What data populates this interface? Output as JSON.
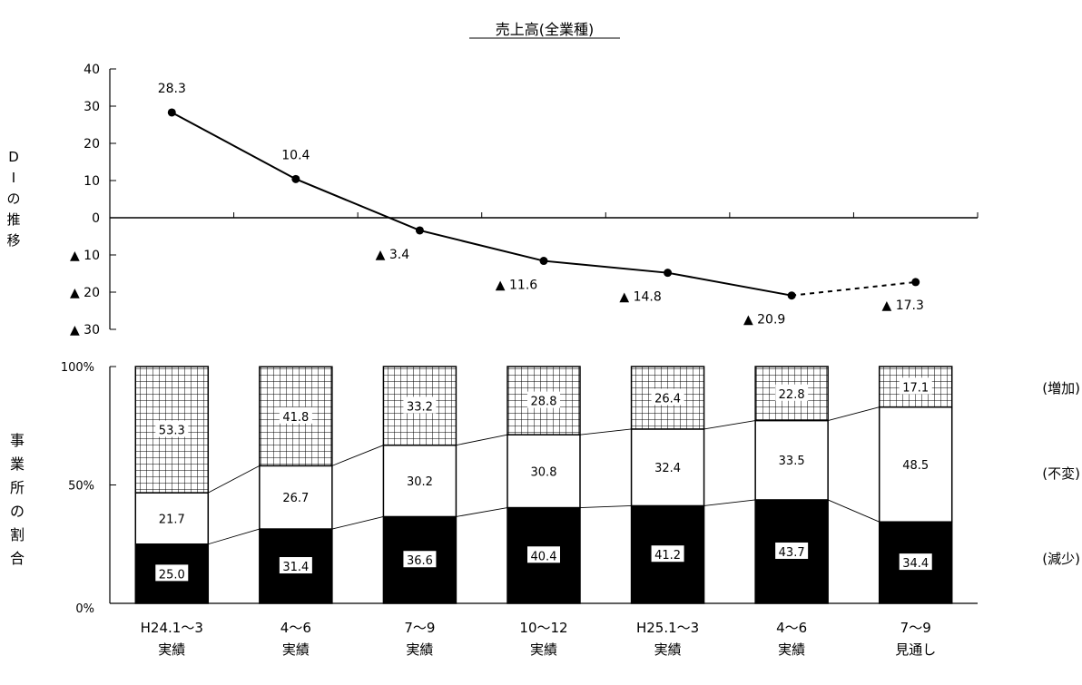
{
  "chart_data": [
    {
      "type": "line",
      "title": "売上高(全業種)",
      "ylabel_chars": [
        "D",
        "I",
        "の",
        "推",
        "移"
      ],
      "ylim": [
        -30,
        40
      ],
      "yticks": [
        {
          "value": 40,
          "label": "40"
        },
        {
          "value": 30,
          "label": "30"
        },
        {
          "value": 20,
          "label": "20"
        },
        {
          "value": 10,
          "label": "10"
        },
        {
          "value": 0,
          "label": "0"
        },
        {
          "value": -10,
          "label": "▲ 10"
        },
        {
          "value": -20,
          "label": "▲ 20"
        },
        {
          "value": -30,
          "label": "▲ 30"
        }
      ],
      "x": [
        "H24.1～3 実績",
        "4～6 実績",
        "7～9 実績",
        "10～12 実績",
        "H25.1～3 実績",
        "4～6 実績",
        "7～9 見通し"
      ],
      "values": [
        28.3,
        10.4,
        -3.4,
        -11.6,
        -14.8,
        -20.9,
        -17.3
      ],
      "value_labels": [
        "28.3",
        "10.4",
        "▲ 3.4",
        "▲ 11.6",
        "▲ 14.8",
        "▲ 20.9",
        "▲ 17.3"
      ],
      "forecast_last_segment_dashed": true
    },
    {
      "type": "bar",
      "stacked": true,
      "ylabel_chars": [
        "事",
        "業",
        "所",
        "の",
        "割",
        "合"
      ],
      "ylim": [
        0,
        100
      ],
      "yticks": [
        "0%",
        "50%",
        "100%"
      ],
      "categories": [
        {
          "line1": "H24.1～3",
          "line2": "実績"
        },
        {
          "line1": "4～6",
          "line2": "実績"
        },
        {
          "line1": "7～9",
          "line2": "実績"
        },
        {
          "line1": "10～12",
          "line2": "実績"
        },
        {
          "line1": "H25.1～3",
          "line2": "実績"
        },
        {
          "line1": "4～6",
          "line2": "実績"
        },
        {
          "line1": "7～9",
          "line2": "見通し"
        }
      ],
      "series": [
        {
          "name": "(減少)",
          "fill": "#000000",
          "values": [
            25.0,
            31.4,
            36.6,
            40.4,
            41.2,
            43.7,
            34.4
          ],
          "labels": [
            "25.0",
            "31.4",
            "36.6",
            "40.4",
            "41.2",
            "43.7",
            "34.4"
          ]
        },
        {
          "name": "(不変)",
          "fill": "#ffffff",
          "values": [
            21.7,
            26.7,
            30.2,
            30.8,
            32.4,
            33.5,
            48.5
          ],
          "labels": [
            "21.7",
            "26.7",
            "30.2",
            "30.8",
            "32.4",
            "33.5",
            "48.5"
          ]
        },
        {
          "name": "(増加)",
          "fill": "grid-pattern",
          "values": [
            53.3,
            41.8,
            33.2,
            28.8,
            26.4,
            22.8,
            17.1
          ],
          "labels": [
            "53.3",
            "41.8",
            "33.2",
            "28.8",
            "26.4",
            "22.8",
            "17.1"
          ]
        }
      ],
      "legend_position": "right"
    }
  ]
}
